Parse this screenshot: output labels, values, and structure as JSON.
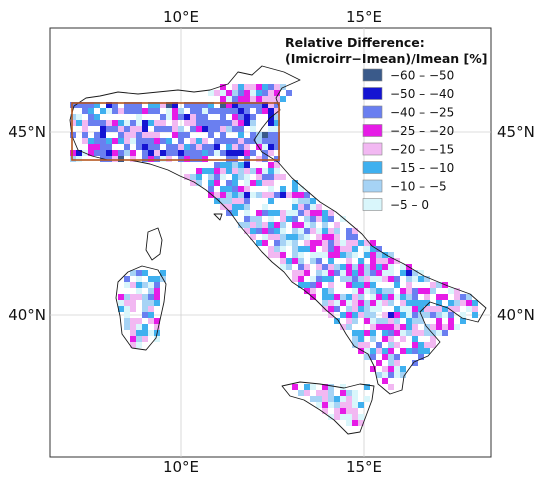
{
  "map": {
    "type": "choropleth-grid",
    "region": "Italy",
    "lon_range": [
      6.3,
      18.8
    ],
    "lat_range": [
      36.0,
      47.6
    ],
    "gridlines": true,
    "ticks": {
      "lon": [
        {
          "value": 10,
          "label": "10°E"
        },
        {
          "value": 15,
          "label": "15°E"
        }
      ],
      "lat": [
        {
          "value": 45,
          "label": "45°N"
        },
        {
          "value": 40,
          "label": "40°N"
        }
      ]
    },
    "highlight_box": {
      "lon": [
        6.6,
        12.6
      ],
      "lat": [
        44.3,
        46.0
      ],
      "color": "#b5561e"
    }
  },
  "legend": {
    "title_line1": "Relative Difference:",
    "title_line2": "(Imicroirr−Imean)/Imean [%]",
    "placement": "top-right",
    "items": [
      {
        "label": "−60 – −50",
        "color": "#3a5a8a"
      },
      {
        "label": "−50 – −40",
        "color": "#1414d2"
      },
      {
        "label": "−40 – −25",
        "color": "#6a7ff0"
      },
      {
        "label": "−25 – −20",
        "color": "#e61ce6"
      },
      {
        "label": "−20 – −15",
        "color": "#f2b8f2"
      },
      {
        "label": "−15 – −10",
        "color": "#3fb0ef"
      },
      {
        "label": "−10 – −5",
        "color": "#a6d3f5"
      },
      {
        "label": "−5 – 0",
        "color": "#d9f6fb"
      }
    ]
  }
}
